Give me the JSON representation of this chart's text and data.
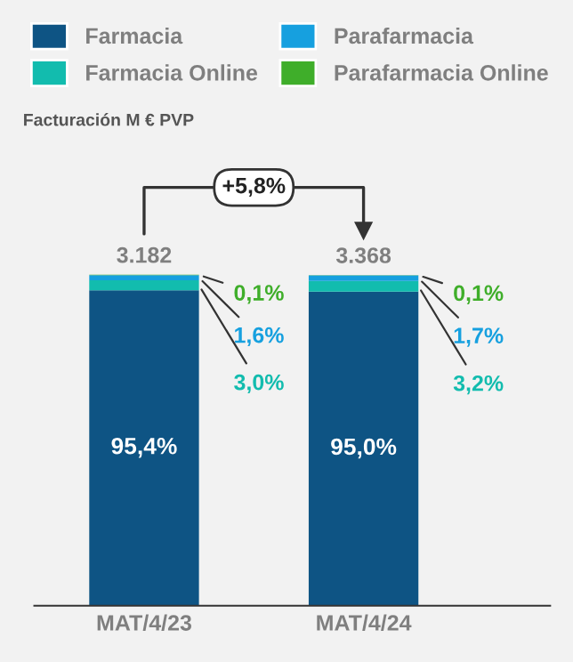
{
  "chart_data": {
    "type": "bar",
    "stacked": true,
    "subtitle": "Facturación M € PVP",
    "categories": [
      "MAT/4/23",
      "MAT/4/24"
    ],
    "series": [
      {
        "name": "Farmacia",
        "color": "#0e5484",
        "values": [
          95.4,
          95.0
        ],
        "value_labels": [
          "95,4%",
          "95,0%"
        ]
      },
      {
        "name": "Farmacia Online",
        "color": "#12bcae",
        "values": [
          3.0,
          3.2
        ],
        "value_labels": [
          "3,0%",
          "3,2%"
        ]
      },
      {
        "name": "Parafarmacia",
        "color": "#16a0df",
        "values": [
          1.6,
          1.7
        ],
        "value_labels": [
          "1,6%",
          "1,7%"
        ]
      },
      {
        "name": "Parafarmacia Online",
        "color": "#3fae2a",
        "values": [
          0.1,
          0.1
        ],
        "value_labels": [
          "0,1%",
          "0,1%"
        ]
      }
    ],
    "tick_labels": "x",
    "annotations": [
      "3.182",
      "3.368",
      "+5,8%"
    ],
    "legend": "top",
    "grid": false
  }
}
